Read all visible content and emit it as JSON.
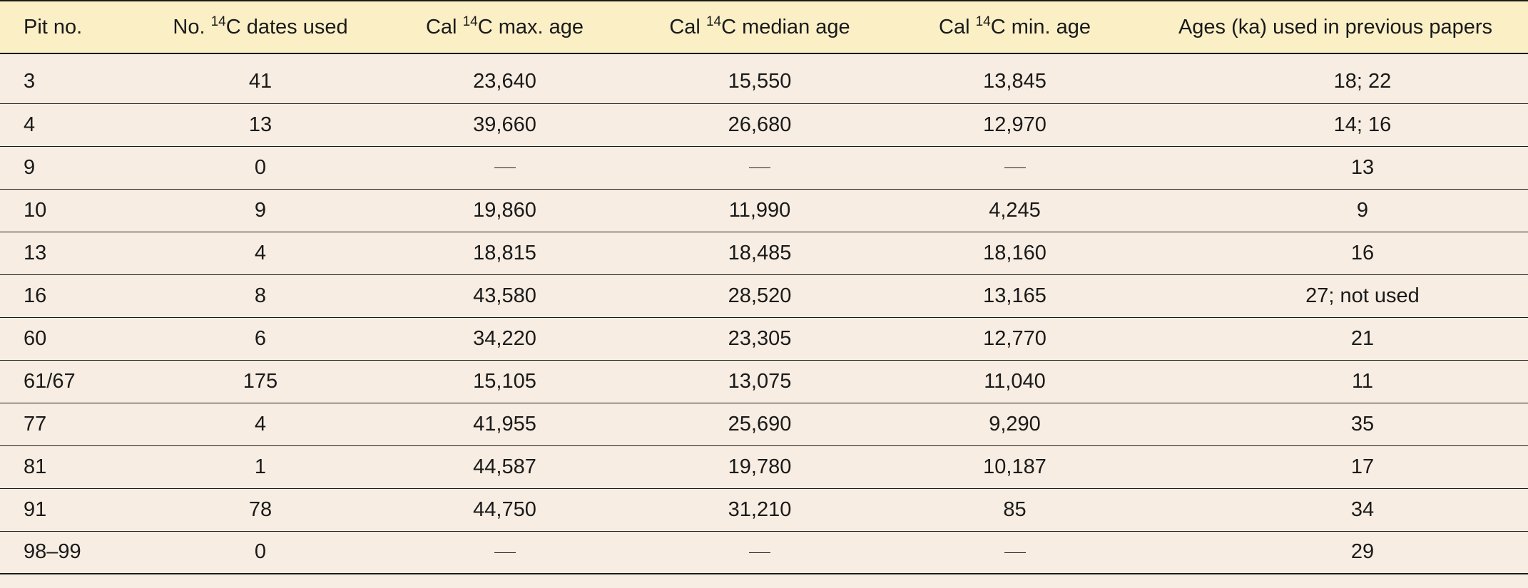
{
  "table": {
    "headers": [
      {
        "pre": "Pit no.",
        "sup": "",
        "post": ""
      },
      {
        "pre": "No. ",
        "sup": "14",
        "post": "C dates used"
      },
      {
        "pre": "Cal ",
        "sup": "14",
        "post": "C max. age"
      },
      {
        "pre": "Cal ",
        "sup": "14",
        "post": "C median age"
      },
      {
        "pre": "Cal ",
        "sup": "14",
        "post": "C min. age"
      },
      {
        "pre": "Ages (ka) used in previous papers",
        "sup": "",
        "post": ""
      }
    ],
    "rows": [
      [
        "3",
        "41",
        "23,640",
        "15,550",
        "13,845",
        "18; 22"
      ],
      [
        "4",
        "13",
        "39,660",
        "26,680",
        "12,970",
        "14; 16"
      ],
      [
        "9",
        "0",
        "—",
        "—",
        "—",
        "13"
      ],
      [
        "10",
        "9",
        "19,860",
        "11,990",
        "4,245",
        "9"
      ],
      [
        "13",
        "4",
        "18,815",
        "18,485",
        "18,160",
        "16"
      ],
      [
        "16",
        "8",
        "43,580",
        "28,520",
        "13,165",
        "27; not used"
      ],
      [
        "60",
        "6",
        "34,220",
        "23,305",
        "12,770",
        "21"
      ],
      [
        "61/67",
        "175",
        "15,105",
        "13,075",
        "11,040",
        "11"
      ],
      [
        "77",
        "4",
        "41,955",
        "25,690",
        "9,290",
        "35"
      ],
      [
        "81",
        "1",
        "44,587",
        "19,780",
        "10,187",
        "17"
      ],
      [
        "91",
        "78",
        "44,750",
        "31,210",
        "85",
        "34"
      ],
      [
        "98–99",
        "0",
        "—",
        "—",
        "—",
        "29"
      ]
    ]
  }
}
